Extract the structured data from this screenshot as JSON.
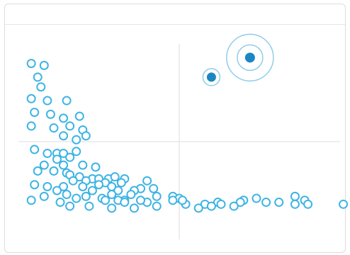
{
  "colors": {
    "point": "#3db4e3",
    "highlight": "#1a86c4",
    "ring": "#8fcde9",
    "quadrant_line": "#e8e8e8",
    "panel_border": "#dcdcdc"
  },
  "chart_data": {
    "type": "scatter",
    "title": "",
    "xlabel": "",
    "ylabel": "",
    "xlim": [
      0,
      100
    ],
    "ylim": [
      0,
      100
    ],
    "grid": false,
    "quadrant_lines": {
      "x": 50,
      "y": 50
    },
    "series": [
      {
        "style": "hollow",
        "points": [
          [
            4,
            90
          ],
          [
            8,
            89
          ],
          [
            6,
            83
          ],
          [
            7,
            78
          ],
          [
            4,
            72
          ],
          [
            9,
            71
          ],
          [
            15,
            71
          ],
          [
            5,
            65
          ],
          [
            10,
            64
          ],
          [
            14,
            62
          ],
          [
            19,
            63
          ],
          [
            16,
            58
          ],
          [
            4,
            58
          ],
          [
            11,
            57
          ],
          [
            20,
            56
          ],
          [
            14,
            53
          ],
          [
            21,
            53
          ],
          [
            18,
            51
          ],
          [
            5,
            46
          ],
          [
            12,
            44
          ],
          [
            9,
            44
          ],
          [
            14,
            44
          ],
          [
            18,
            45
          ],
          [
            12,
            41
          ],
          [
            16,
            42
          ],
          [
            8,
            38
          ],
          [
            14,
            38
          ],
          [
            20,
            38
          ],
          [
            24,
            37
          ],
          [
            6,
            35
          ],
          [
            11,
            35
          ],
          [
            15,
            34
          ],
          [
            16,
            33
          ],
          [
            19,
            32
          ],
          [
            23,
            31
          ],
          [
            25,
            31
          ],
          [
            28,
            31
          ],
          [
            30,
            32
          ],
          [
            33,
            31
          ],
          [
            40,
            30
          ],
          [
            17,
            30
          ],
          [
            21,
            30
          ],
          [
            27,
            29
          ],
          [
            32,
            29
          ],
          [
            25,
            28
          ],
          [
            29,
            27
          ],
          [
            38,
            26
          ],
          [
            5,
            28
          ],
          [
            9,
            27
          ],
          [
            14,
            27
          ],
          [
            20,
            27
          ],
          [
            12,
            25
          ],
          [
            23,
            25
          ],
          [
            31,
            25
          ],
          [
            36,
            25
          ],
          [
            42,
            26
          ],
          [
            8,
            22
          ],
          [
            15,
            23
          ],
          [
            21,
            22
          ],
          [
            29,
            23
          ],
          [
            35,
            23
          ],
          [
            43,
            22
          ],
          [
            48,
            22
          ],
          [
            50,
            21
          ],
          [
            18,
            21
          ],
          [
            26,
            21
          ],
          [
            33,
            20
          ],
          [
            40,
            19
          ],
          [
            52,
            18
          ],
          [
            70,
            20
          ],
          [
            74,
            21
          ],
          [
            86,
            22
          ],
          [
            89,
            20
          ],
          [
            90,
            18
          ],
          [
            101,
            18
          ],
          [
            4,
            20
          ],
          [
            13,
            19
          ],
          [
            27,
            20
          ],
          [
            31,
            20
          ],
          [
            33,
            19
          ],
          [
            38,
            20
          ],
          [
            48,
            20
          ],
          [
            51,
            20
          ],
          [
            58,
            18
          ],
          [
            62,
            19
          ],
          [
            69,
            19
          ],
          [
            77,
            19
          ],
          [
            81,
            19
          ],
          [
            86,
            18
          ],
          [
            16,
            17
          ],
          [
            22,
            17
          ],
          [
            29,
            16
          ],
          [
            36,
            16
          ],
          [
            43,
            17
          ],
          [
            56,
            16
          ],
          [
            60,
            17
          ],
          [
            63,
            18
          ],
          [
            67,
            17
          ]
        ]
      },
      {
        "style": "highlight",
        "points": [
          [
            60,
            83
          ],
          [
            72,
            93
          ]
        ]
      }
    ]
  }
}
